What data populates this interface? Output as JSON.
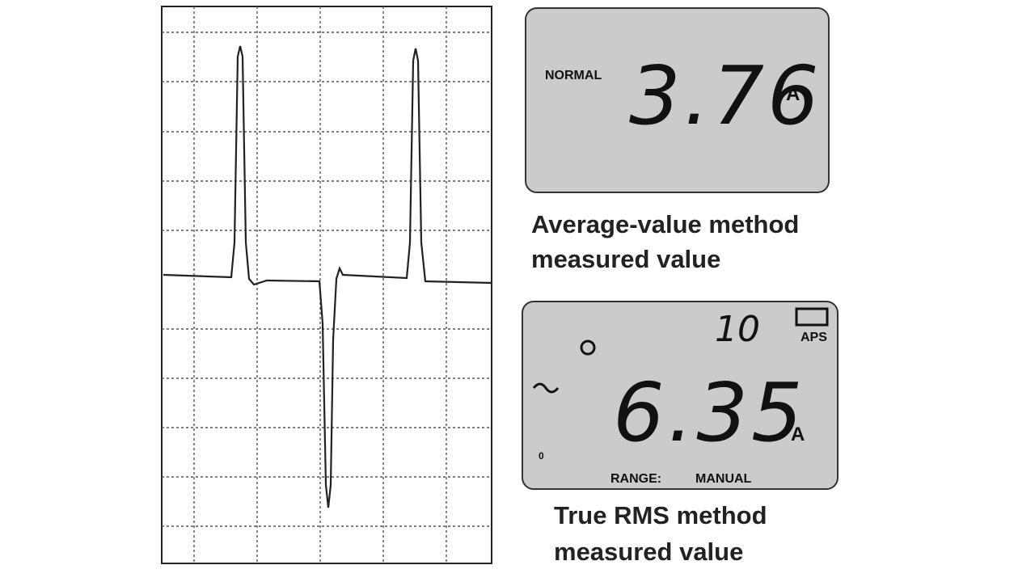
{
  "waveform_panel": {},
  "average_display": {
    "mode": "NORMAL",
    "reading": "3.76",
    "unit": "A"
  },
  "average_caption": {
    "lines": [
      "Average-value method",
      "measured value"
    ]
  },
  "rms_display": {
    "small_reading": "10",
    "indicator": "APS",
    "reading": "6.35",
    "unit": "A",
    "range_label": "RANGE:",
    "range_mode": "MANUAL",
    "zero_mark": "0"
  },
  "rms_caption": {
    "lines": [
      "True RMS method",
      "measured value"
    ]
  }
}
